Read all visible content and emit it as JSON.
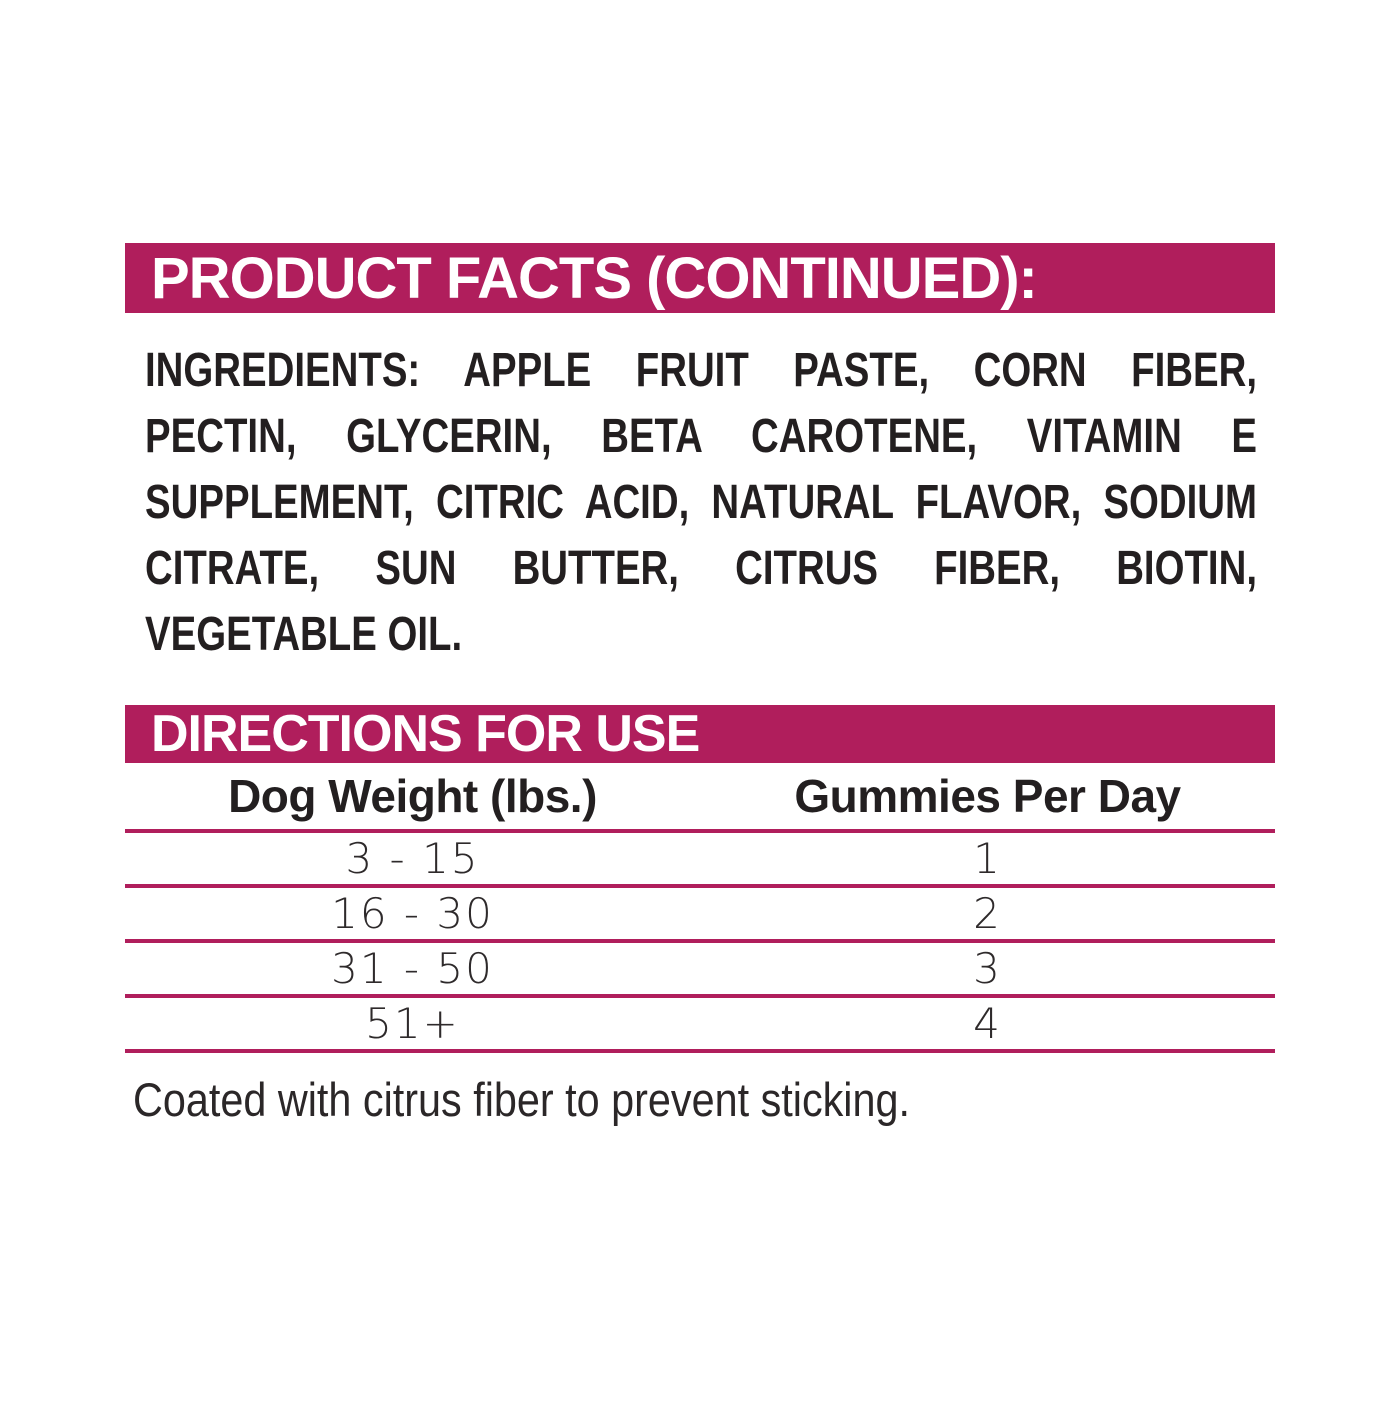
{
  "page": {
    "accent_color": "#B01E5C",
    "text_color": "#231F20",
    "background_color": "#FFFFFF"
  },
  "header": {
    "title": "PRODUCT FACTS (CONTINUED):"
  },
  "ingredients": {
    "lines": [
      "INGREDIENTS: APPLE FRUIT PASTE, CORN FIBER,",
      "PECTIN, GLYCERIN, BETA CAROTENE, VITAMIN E",
      "SUPPLEMENT, CITRIC ACID, NATURAL FLAVOR, SODIUM",
      "CITRATE, SUN BUTTER, CITRUS FIBER, BIOTIN,",
      "VEGETABLE OIL."
    ]
  },
  "directions": {
    "title": "DIRECTIONS FOR USE",
    "table": {
      "columns": [
        "Dog Weight (lbs.)",
        "Gummies Per Day"
      ],
      "rows": [
        {
          "weight": "3 - 15",
          "gummies": "1"
        },
        {
          "weight": "16 - 30",
          "gummies": "2"
        },
        {
          "weight": "31 - 50",
          "gummies": "3"
        },
        {
          "weight": "51+",
          "gummies": "4"
        }
      ]
    },
    "note": "Coated with citrus fiber to prevent sticking."
  }
}
